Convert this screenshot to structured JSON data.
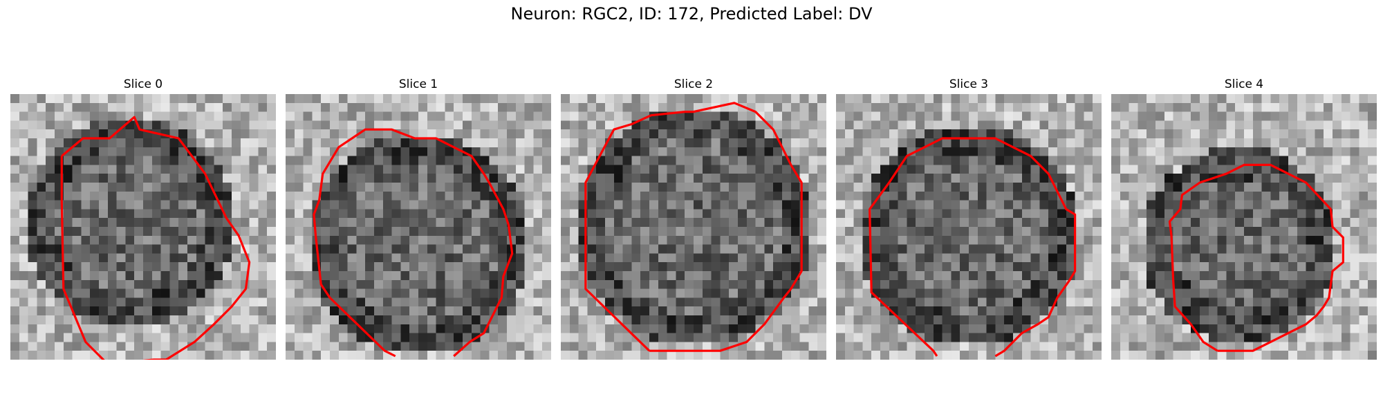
{
  "figure": {
    "title": "Neuron: RGC2, ID: 172, Predicted Label: DV"
  },
  "panels": [
    {
      "title": "Slice 0"
    },
    {
      "title": "Slice 1"
    },
    {
      "title": "Slice 2"
    },
    {
      "title": "Slice 3"
    },
    {
      "title": "Slice 4"
    }
  ],
  "colors": {
    "contour": "#ff0000",
    "background": "#ffffff"
  }
}
